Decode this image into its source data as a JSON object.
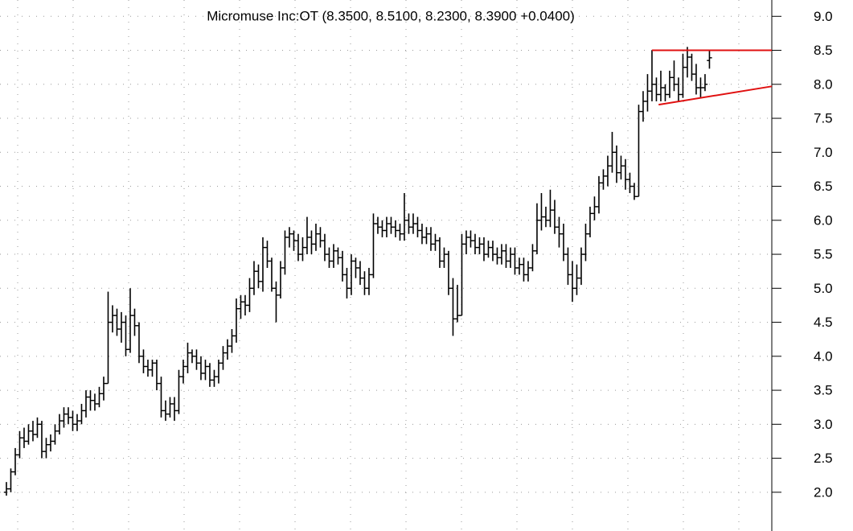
{
  "chart_data": {
    "type": "ohlc",
    "title": "Micromuse Inc:OT (8.3500, 8.5100, 8.2300, 8.3900 +0.0400)",
    "color": "#000000",
    "grid": true,
    "xlim": [
      -1.45,
      173.1
    ],
    "ylim": [
      1.43,
      9.24
    ],
    "yticks": [
      {
        "value": 2,
        "label": "2.0"
      },
      {
        "value": 2.5,
        "label": "2.5"
      },
      {
        "value": 3,
        "label": "3.0"
      },
      {
        "value": 3.5,
        "label": "3.5"
      },
      {
        "value": 4,
        "label": "4.0"
      },
      {
        "value": 4.5,
        "label": "4.5"
      },
      {
        "value": 5,
        "label": "5.0"
      },
      {
        "value": 5.5,
        "label": "5.5"
      },
      {
        "value": 6,
        "label": "6.0"
      },
      {
        "value": 6.5,
        "label": "6.5"
      },
      {
        "value": 7,
        "label": "7.0"
      },
      {
        "value": 7.5,
        "label": "7.5"
      },
      {
        "value": 8,
        "label": "8.0"
      },
      {
        "value": 8.5,
        "label": "8.5"
      },
      {
        "value": 9,
        "label": "9.0"
      }
    ],
    "open": [
      2.0,
      2.05,
      2.3,
      2.55,
      2.8,
      2.75,
      2.9,
      2.85,
      3.0,
      2.6,
      2.7,
      2.75,
      2.9,
      3.05,
      3.15,
      3.1,
      3.0,
      3.05,
      3.2,
      3.4,
      3.35,
      3.3,
      3.45,
      3.6,
      4.5,
      4.6,
      4.4,
      4.5,
      4.1,
      4.6,
      4.45,
      4.0,
      3.85,
      3.8,
      3.9,
      3.6,
      3.2,
      3.15,
      3.3,
      3.2,
      3.7,
      3.85,
      4.05,
      4.0,
      3.9,
      3.75,
      3.85,
      3.65,
      3.7,
      3.9,
      4.05,
      4.15,
      4.3,
      4.7,
      4.8,
      4.75,
      5.0,
      5.25,
      5.1,
      5.6,
      5.4,
      5.0,
      4.9,
      5.3,
      5.75,
      5.8,
      5.7,
      5.5,
      5.6,
      5.75,
      5.65,
      5.8,
      5.7,
      5.5,
      5.4,
      5.55,
      5.45,
      5.2,
      5.0,
      5.4,
      5.3,
      5.15,
      5.0,
      5.2,
      5.95,
      5.9,
      5.85,
      5.95,
      5.9,
      5.85,
      5.8,
      6.0,
      5.9,
      5.95,
      5.85,
      5.75,
      5.8,
      5.65,
      5.7,
      5.4,
      5.5,
      5.0,
      4.55,
      4.6,
      5.65,
      5.75,
      5.7,
      5.6,
      5.65,
      5.5,
      5.6,
      5.5,
      5.45,
      5.55,
      5.4,
      5.5,
      5.3,
      5.35,
      5.2,
      5.3,
      5.55,
      6.0,
      6.05,
      6.0,
      6.15,
      5.9,
      5.8,
      5.5,
      5.2,
      5.0,
      5.15,
      5.5,
      5.8,
      6.1,
      6.2,
      6.55,
      6.65,
      6.8,
      7.0,
      6.7,
      6.8,
      6.6,
      6.5,
      6.35,
      7.6,
      7.75,
      7.9,
      8.0,
      7.85,
      7.95,
      7.85,
      8.1,
      8.0,
      7.85,
      8.25,
      8.4,
      8.15,
      7.95,
      7.95,
      8.35
    ],
    "high": [
      2.15,
      2.35,
      2.65,
      2.9,
      2.95,
      3.0,
      3.05,
      3.1,
      3.05,
      2.8,
      2.85,
      3.0,
      3.15,
      3.25,
      3.25,
      3.2,
      3.15,
      3.3,
      3.5,
      3.5,
      3.45,
      3.55,
      3.7,
      4.95,
      4.75,
      4.7,
      4.65,
      4.6,
      5.0,
      4.7,
      4.5,
      4.1,
      3.95,
      3.95,
      3.95,
      3.7,
      3.35,
      3.4,
      3.4,
      3.8,
      3.95,
      4.2,
      4.1,
      4.1,
      4.0,
      3.95,
      3.9,
      3.8,
      3.95,
      4.15,
      4.25,
      4.4,
      4.85,
      4.9,
      4.9,
      5.15,
      5.4,
      5.35,
      5.75,
      5.7,
      5.45,
      5.1,
      5.4,
      5.85,
      5.9,
      5.85,
      5.8,
      5.75,
      6.05,
      5.85,
      5.95,
      5.9,
      5.8,
      5.6,
      5.65,
      5.6,
      5.55,
      5.3,
      5.5,
      5.45,
      5.4,
      5.25,
      5.3,
      6.1,
      6.05,
      6.0,
      6.05,
      6.05,
      6.0,
      5.95,
      6.4,
      6.1,
      6.1,
      6.05,
      5.95,
      5.9,
      5.9,
      5.8,
      5.75,
      5.6,
      5.55,
      5.15,
      5.05,
      5.8,
      5.85,
      5.85,
      5.8,
      5.75,
      5.75,
      5.7,
      5.7,
      5.6,
      5.65,
      5.65,
      5.6,
      5.6,
      5.45,
      5.45,
      5.4,
      5.65,
      6.25,
      6.4,
      6.2,
      6.45,
      6.3,
      6.05,
      5.95,
      5.6,
      5.4,
      5.35,
      5.6,
      5.95,
      6.2,
      6.35,
      6.65,
      6.75,
      6.95,
      7.3,
      7.1,
      6.95,
      6.9,
      6.7,
      6.55,
      7.7,
      7.9,
      8.15,
      8.5,
      8.1,
      8.2,
      8.0,
      8.2,
      8.35,
      8.1,
      8.45,
      8.55,
      8.45,
      8.3,
      8.1,
      8.15,
      8.51
    ],
    "low": [
      1.95,
      2.0,
      2.25,
      2.5,
      2.65,
      2.7,
      2.75,
      2.8,
      2.5,
      2.5,
      2.6,
      2.7,
      2.85,
      2.95,
      3.0,
      2.9,
      2.9,
      3.0,
      3.1,
      3.2,
      3.2,
      3.25,
      3.35,
      3.6,
      4.35,
      4.3,
      4.2,
      4.0,
      4.05,
      4.3,
      3.9,
      3.75,
      3.7,
      3.7,
      3.5,
      3.1,
      3.05,
      3.1,
      3.05,
      3.15,
      3.6,
      3.75,
      3.9,
      3.8,
      3.65,
      3.65,
      3.55,
      3.55,
      3.6,
      3.8,
      3.95,
      4.05,
      4.2,
      4.55,
      4.6,
      4.65,
      4.9,
      5.0,
      4.95,
      5.3,
      4.95,
      4.5,
      4.85,
      5.2,
      5.6,
      5.55,
      5.4,
      5.4,
      5.5,
      5.5,
      5.55,
      5.6,
      5.4,
      5.3,
      5.3,
      5.35,
      5.1,
      4.85,
      4.9,
      5.15,
      5.05,
      4.9,
      4.9,
      5.15,
      5.8,
      5.75,
      5.75,
      5.8,
      5.75,
      5.7,
      5.7,
      5.8,
      5.8,
      5.75,
      5.65,
      5.65,
      5.55,
      5.55,
      5.3,
      5.3,
      4.9,
      4.3,
      4.5,
      4.6,
      5.5,
      5.6,
      5.5,
      5.5,
      5.4,
      5.45,
      5.4,
      5.35,
      5.35,
      5.3,
      5.3,
      5.2,
      5.2,
      5.1,
      5.1,
      5.25,
      5.5,
      5.85,
      5.9,
      5.9,
      5.8,
      5.6,
      5.4,
      5.05,
      4.8,
      4.9,
      5.05,
      5.4,
      5.75,
      6.0,
      6.1,
      6.45,
      6.5,
      6.7,
      6.55,
      6.6,
      6.45,
      6.4,
      6.3,
      6.35,
      7.45,
      7.6,
      7.75,
      7.75,
      7.75,
      7.75,
      7.8,
      7.9,
      7.75,
      7.8,
      8.1,
      8.05,
      7.85,
      7.8,
      7.9,
      8.23
    ],
    "close": [
      2.05,
      2.3,
      2.55,
      2.8,
      2.75,
      2.9,
      2.85,
      3.0,
      2.6,
      2.7,
      2.75,
      2.9,
      3.05,
      3.15,
      3.1,
      3.0,
      3.05,
      3.2,
      3.4,
      3.35,
      3.3,
      3.45,
      3.6,
      4.5,
      4.6,
      4.4,
      4.5,
      4.1,
      4.6,
      4.45,
      4.0,
      3.85,
      3.8,
      3.9,
      3.6,
      3.2,
      3.15,
      3.3,
      3.2,
      3.7,
      3.85,
      4.05,
      4.0,
      3.9,
      3.75,
      3.85,
      3.65,
      3.7,
      3.9,
      4.05,
      4.15,
      4.3,
      4.7,
      4.8,
      4.75,
      5.0,
      5.25,
      5.1,
      5.6,
      5.4,
      5.0,
      4.9,
      5.3,
      5.75,
      5.8,
      5.7,
      5.5,
      5.6,
      5.75,
      5.65,
      5.8,
      5.7,
      5.5,
      5.4,
      5.55,
      5.45,
      5.2,
      5.0,
      5.4,
      5.3,
      5.15,
      5.0,
      5.2,
      5.95,
      5.9,
      5.85,
      5.95,
      5.9,
      5.85,
      5.8,
      6.0,
      5.9,
      5.95,
      5.85,
      5.75,
      5.8,
      5.65,
      5.7,
      5.4,
      5.5,
      5.0,
      4.55,
      4.6,
      5.65,
      5.75,
      5.7,
      5.6,
      5.65,
      5.5,
      5.6,
      5.5,
      5.45,
      5.55,
      5.4,
      5.5,
      5.3,
      5.35,
      5.2,
      5.3,
      5.55,
      6.0,
      6.05,
      6.0,
      6.15,
      5.9,
      5.8,
      5.5,
      5.2,
      5.0,
      5.15,
      5.5,
      5.8,
      6.1,
      6.2,
      6.55,
      6.65,
      6.8,
      7.0,
      6.7,
      6.8,
      6.6,
      6.5,
      6.35,
      7.6,
      7.75,
      7.9,
      8.0,
      7.85,
      7.95,
      7.85,
      8.1,
      8.0,
      7.85,
      8.25,
      8.4,
      8.15,
      7.95,
      7.95,
      8.0,
      8.39
    ],
    "lines": [
      {
        "color": "#e01010",
        "x": [
          146,
          173.1
        ],
        "y": [
          8.5,
          8.5
        ]
      },
      {
        "color": "#e01010",
        "x": [
          147.5,
          173.1
        ],
        "y": [
          7.7,
          7.97
        ]
      }
    ]
  }
}
